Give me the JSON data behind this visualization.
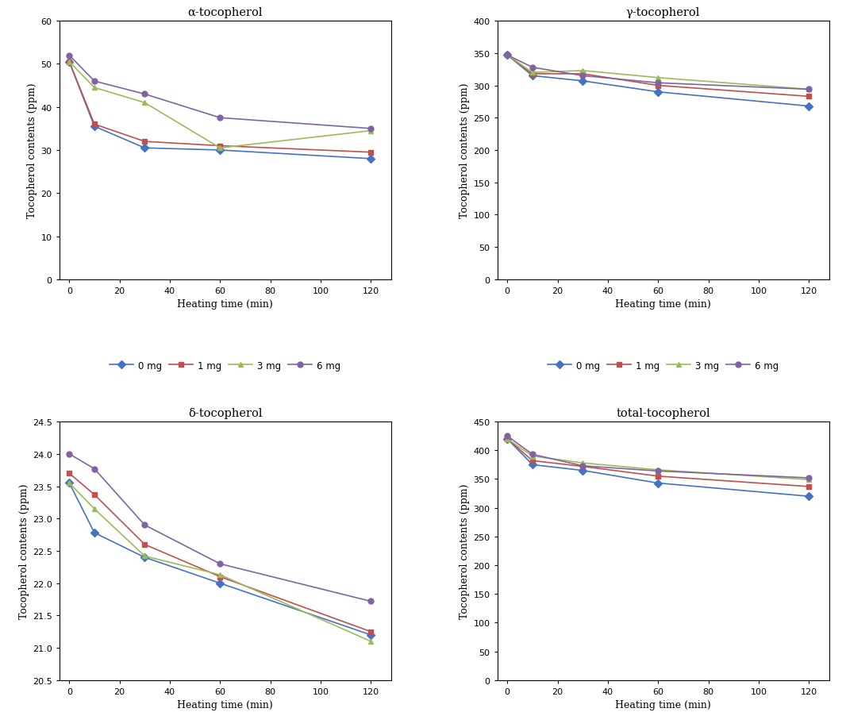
{
  "x": [
    0,
    10,
    30,
    60,
    120
  ],
  "alpha": {
    "title": "α-tocopherol",
    "ylim": [
      0,
      60
    ],
    "yticks": [
      0,
      10,
      20,
      30,
      40,
      50,
      60
    ],
    "series": {
      "0 mg": [
        50.5,
        35.5,
        30.5,
        30.0,
        28.0
      ],
      "1 mg": [
        50.5,
        36.0,
        32.0,
        31.0,
        29.5
      ],
      "3 mg": [
        50.5,
        44.5,
        41.0,
        30.5,
        34.5
      ],
      "6 mg": [
        52.0,
        46.0,
        43.0,
        37.5,
        35.0
      ]
    }
  },
  "gamma": {
    "title": "γ-tocopherol",
    "ylim": [
      0,
      400
    ],
    "yticks": [
      0,
      50,
      100,
      150,
      200,
      250,
      300,
      350,
      400
    ],
    "series": {
      "0 mg": [
        347,
        315,
        307,
        290,
        268
      ],
      "1 mg": [
        347,
        318,
        318,
        300,
        283
      ],
      "3 mg": [
        347,
        320,
        323,
        312,
        294
      ],
      "6 mg": [
        347,
        328,
        315,
        304,
        294
      ]
    }
  },
  "delta": {
    "title": "δ-tocopherol",
    "ylim": [
      20.5,
      24.5
    ],
    "yticks": [
      20.5,
      21.0,
      21.5,
      22.0,
      22.5,
      23.0,
      23.5,
      24.0,
      24.5
    ],
    "series": {
      "0 mg": [
        23.55,
        22.78,
        22.4,
        22.0,
        21.2
      ],
      "1 mg": [
        23.7,
        23.37,
        22.6,
        22.1,
        21.25
      ],
      "3 mg": [
        23.55,
        23.15,
        22.42,
        22.13,
        21.1
      ],
      "6 mg": [
        24.0,
        23.77,
        22.9,
        22.3,
        21.72
      ]
    }
  },
  "total": {
    "title": "total-tocopherol",
    "ylim": [
      0,
      450
    ],
    "yticks": [
      0,
      50,
      100,
      150,
      200,
      250,
      300,
      350,
      400,
      450
    ],
    "series": {
      "0 mg": [
        420,
        375,
        365,
        343,
        320
      ],
      "1 mg": [
        420,
        382,
        372,
        355,
        337
      ],
      "3 mg": [
        420,
        390,
        378,
        366,
        349
      ],
      "6 mg": [
        425,
        393,
        373,
        364,
        352
      ]
    }
  },
  "colors": {
    "0 mg": "#4472C4",
    "1 mg": "#C0504D",
    "3 mg": "#9BBB59",
    "6 mg": "#8064A2"
  },
  "markers": {
    "0 mg": "D",
    "1 mg": "s",
    "3 mg": "^",
    "6 mg": "o"
  },
  "xlabel": "Heating time (min)",
  "ylabel": "Tocopherol contents (ppm)",
  "legend_labels": [
    "0 mg",
    "1 mg",
    "3 mg",
    "6 mg"
  ],
  "xticks": [
    0,
    20,
    40,
    60,
    80,
    100,
    120
  ]
}
